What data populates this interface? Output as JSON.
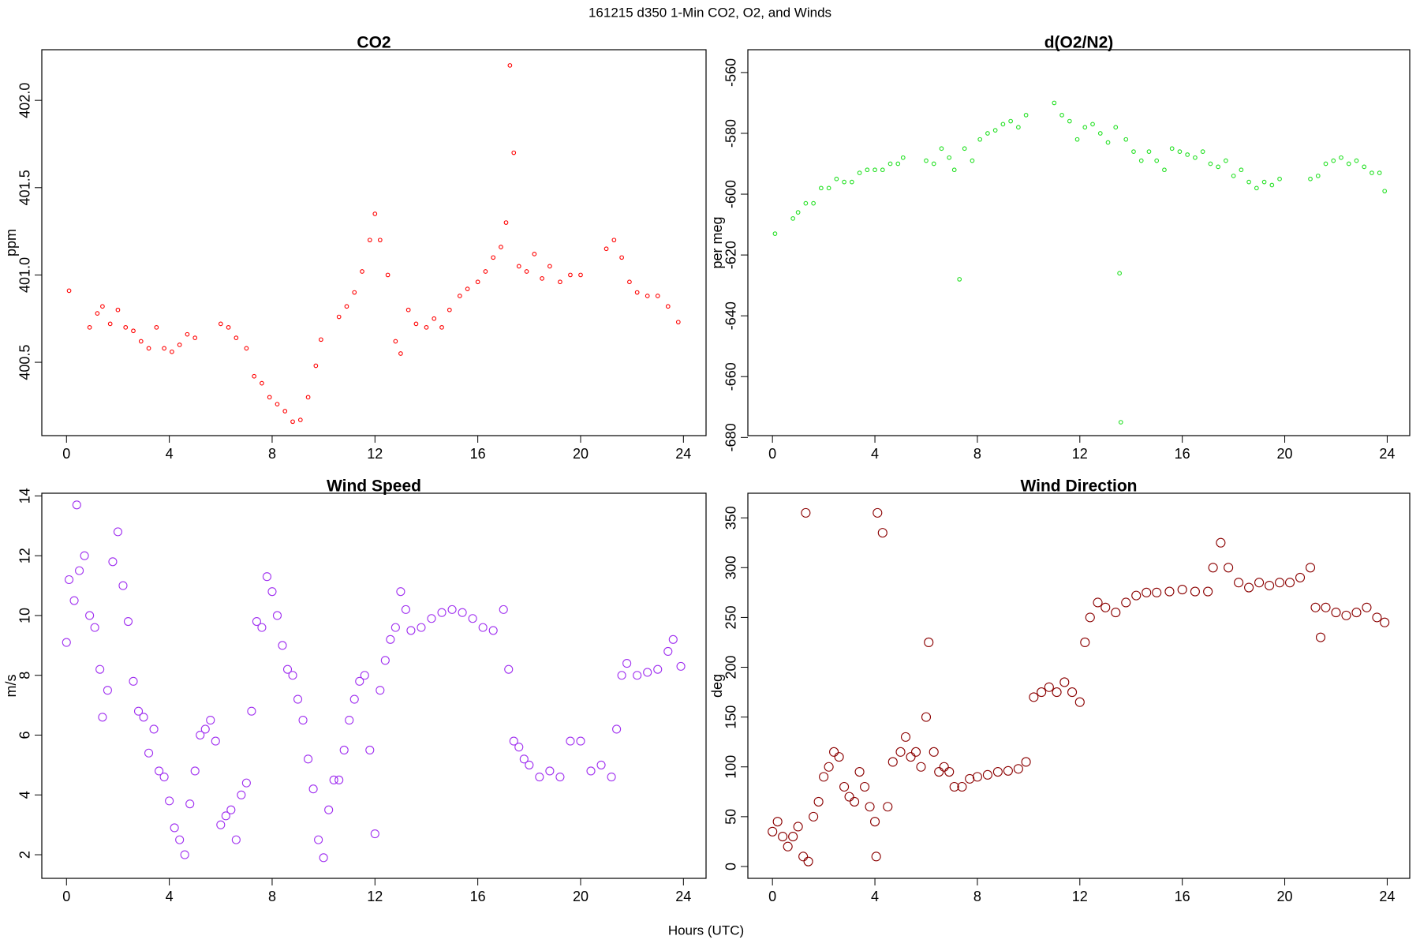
{
  "title": "161215   d350   1-Min CO2, O2, and Winds",
  "xlabel": "Hours (UTC)",
  "chart_data": [
    {
      "type": "scatter",
      "title": "CO2",
      "ylabel": "ppm",
      "color": "#ff0000",
      "x": [
        0.1,
        0.9,
        1.2,
        1.4,
        1.7,
        2.0,
        2.3,
        2.6,
        2.9,
        3.2,
        3.5,
        3.8,
        4.1,
        4.4,
        4.7,
        5.0,
        6.0,
        6.3,
        6.6,
        7.0,
        7.3,
        7.6,
        7.9,
        8.2,
        8.5,
        8.8,
        9.1,
        9.4,
        9.7,
        9.9,
        10.6,
        10.9,
        11.2,
        11.5,
        11.8,
        12.0,
        12.2,
        12.5,
        12.8,
        13.0,
        13.3,
        13.6,
        14.0,
        14.3,
        14.6,
        14.9,
        15.3,
        15.6,
        16.0,
        16.3,
        16.6,
        16.9,
        17.1,
        17.25,
        17.4,
        17.6,
        17.9,
        18.2,
        18.5,
        18.8,
        19.2,
        19.6,
        20.0,
        21.0,
        21.3,
        21.6,
        21.9,
        22.2,
        22.6,
        23.0,
        23.4,
        23.8
      ],
      "values": [
        400.91,
        400.7,
        400.78,
        400.82,
        400.72,
        400.8,
        400.7,
        400.68,
        400.62,
        400.58,
        400.7,
        400.58,
        400.56,
        400.6,
        400.66,
        400.64,
        400.72,
        400.7,
        400.64,
        400.58,
        400.42,
        400.38,
        400.3,
        400.26,
        400.22,
        400.16,
        400.17,
        400.3,
        400.48,
        400.63,
        400.76,
        400.82,
        400.9,
        401.02,
        401.2,
        401.35,
        401.2,
        401.0,
        400.62,
        400.55,
        400.8,
        400.72,
        400.7,
        400.75,
        400.7,
        400.8,
        400.88,
        400.92,
        400.96,
        401.02,
        401.1,
        401.16,
        401.3,
        402.2,
        401.7,
        401.05,
        401.02,
        401.12,
        400.98,
        401.05,
        400.96,
        401.0,
        401.0,
        401.15,
        401.2,
        401.1,
        400.96,
        400.9,
        400.88,
        400.88,
        400.82,
        400.73
      ],
      "xlim": [
        -0.96,
        24.88
      ],
      "xticks": [
        0,
        4,
        8,
        12,
        16,
        20,
        24
      ],
      "ylim": [
        400.08,
        402.29
      ],
      "yticks": [
        400.5,
        {
          "value": 401,
          "label": "401.0"
        },
        401.5,
        {
          "value": 402,
          "label": "402.0"
        }
      ]
    },
    {
      "type": "scatter",
      "title": "d(O2/N2)",
      "ylabel": "per meg",
      "color": "#22e022",
      "x": [
        0.1,
        0.8,
        1.0,
        1.3,
        1.6,
        1.9,
        2.2,
        2.5,
        2.8,
        3.1,
        3.4,
        3.7,
        4.0,
        4.3,
        4.6,
        4.9,
        5.1,
        6.0,
        6.3,
        6.6,
        6.9,
        7.1,
        7.3,
        7.5,
        7.8,
        8.1,
        8.4,
        8.7,
        9.0,
        9.3,
        9.6,
        9.9,
        11.0,
        11.3,
        11.6,
        11.9,
        12.2,
        12.5,
        12.8,
        13.1,
        13.4,
        13.55,
        13.6,
        13.8,
        14.1,
        14.4,
        14.7,
        15.0,
        15.3,
        15.6,
        15.9,
        16.2,
        16.5,
        16.8,
        17.1,
        17.4,
        17.7,
        18.0,
        18.3,
        18.6,
        18.9,
        19.2,
        19.5,
        19.8,
        21.0,
        21.3,
        21.6,
        21.9,
        22.2,
        22.5,
        22.8,
        23.1,
        23.4,
        23.7,
        23.9
      ],
      "values": [
        -613,
        -608,
        -606,
        -603,
        -603,
        -598,
        -598,
        -595,
        -596,
        -596,
        -593,
        -592,
        -592,
        -592,
        -590,
        -590,
        -588,
        -589,
        -590,
        -585,
        -588,
        -592,
        -628,
        -585,
        -589,
        -582,
        -580,
        -579,
        -577,
        -576,
        -578,
        -574,
        -570,
        -574,
        -576,
        -582,
        -578,
        -577,
        -580,
        -583,
        -578,
        -626,
        -675,
        -582,
        -586,
        -589,
        -586,
        -589,
        -592,
        -585,
        -586,
        -587,
        -588,
        -586,
        -590,
        -591,
        -589,
        -594,
        -592,
        -596,
        -598,
        -596,
        -597,
        -595,
        -595,
        -594,
        -590,
        -589,
        -588,
        -590,
        -589,
        -591,
        -593,
        -593,
        -599
      ],
      "xlim": [
        -0.96,
        24.88
      ],
      "xticks": [
        0,
        4,
        8,
        12,
        16,
        20,
        24
      ],
      "ylim": [
        -679.4,
        -552.5
      ],
      "yticks": [
        -680,
        -660,
        -640,
        -620,
        -600,
        -580,
        -560
      ]
    },
    {
      "type": "scatter",
      "title": "Wind Speed",
      "ylabel": "m/s",
      "color": "#a030f0",
      "x": [
        0.0,
        0.1,
        0.3,
        0.4,
        0.5,
        0.7,
        0.9,
        1.1,
        1.3,
        1.4,
        1.6,
        1.8,
        2.0,
        2.2,
        2.4,
        2.6,
        2.8,
        3.0,
        3.2,
        3.4,
        3.6,
        3.8,
        4.0,
        4.2,
        4.4,
        4.6,
        4.8,
        5.0,
        5.2,
        5.4,
        5.6,
        5.8,
        6.0,
        6.2,
        6.4,
        6.6,
        6.8,
        7.0,
        7.2,
        7.4,
        7.6,
        7.8,
        8.0,
        8.2,
        8.4,
        8.6,
        8.8,
        9.0,
        9.2,
        9.4,
        9.6,
        9.8,
        10.0,
        10.2,
        10.4,
        10.6,
        10.8,
        11.0,
        11.2,
        11.4,
        11.6,
        11.8,
        12.0,
        12.2,
        12.4,
        12.6,
        12.8,
        13.0,
        13.2,
        13.4,
        13.8,
        14.2,
        14.6,
        15.0,
        15.4,
        15.8,
        16.2,
        16.6,
        17.0,
        17.2,
        17.4,
        17.6,
        17.8,
        18.0,
        18.4,
        18.8,
        19.2,
        19.6,
        20.0,
        20.4,
        20.8,
        21.2,
        21.4,
        21.6,
        21.8,
        22.2,
        22.6,
        23.0,
        23.4,
        23.6,
        23.9
      ],
      "values": [
        9.1,
        11.2,
        10.5,
        13.7,
        11.5,
        12,
        10,
        9.6,
        8.2,
        6.6,
        7.5,
        11.8,
        12.8,
        11,
        9.8,
        7.8,
        6.8,
        6.6,
        5.4,
        6.2,
        4.8,
        4.6,
        3.8,
        2.9,
        2.5,
        2.0,
        3.7,
        4.8,
        6.0,
        6.2,
        6.5,
        5.8,
        3.0,
        3.3,
        3.5,
        2.5,
        4.0,
        4.4,
        6.8,
        9.8,
        9.6,
        11.3,
        10.8,
        10,
        9.0,
        8.2,
        8.0,
        7.2,
        6.5,
        5.2,
        4.2,
        2.5,
        1.9,
        3.5,
        4.5,
        4.5,
        5.5,
        6.5,
        7.2,
        7.8,
        8.0,
        5.5,
        2.7,
        7.5,
        8.5,
        9.2,
        9.6,
        10.8,
        10.2,
        9.5,
        9.6,
        9.9,
        10.1,
        10.2,
        10.1,
        9.9,
        9.6,
        9.5,
        10.2,
        8.2,
        5.8,
        5.6,
        5.2,
        5.0,
        4.6,
        4.8,
        4.6,
        5.8,
        5.8,
        4.8,
        5.0,
        4.6,
        6.2,
        8.0,
        8.4,
        8.0,
        8.1,
        8.2,
        8.8,
        9.2,
        8.3
      ],
      "xlim": [
        -0.96,
        24.88
      ],
      "xticks": [
        0,
        4,
        8,
        12,
        16,
        20,
        24
      ],
      "ylim": [
        1.21,
        14.09
      ],
      "yticks": [
        2,
        4,
        6,
        8,
        10,
        12,
        14
      ]
    },
    {
      "type": "scatter",
      "title": "Wind Direction",
      "ylabel": "deg",
      "color": "#8b0000",
      "x": [
        0.0,
        0.2,
        0.4,
        0.6,
        0.8,
        1.0,
        1.2,
        1.3,
        1.4,
        1.6,
        1.8,
        2.0,
        2.2,
        2.4,
        2.6,
        2.8,
        3.0,
        3.2,
        3.4,
        3.6,
        3.8,
        4.0,
        4.05,
        4.1,
        4.3,
        4.5,
        4.7,
        5.0,
        5.2,
        5.4,
        5.6,
        5.8,
        6.0,
        6.1,
        6.3,
        6.5,
        6.7,
        6.9,
        7.1,
        7.4,
        7.7,
        8.0,
        8.4,
        8.8,
        9.2,
        9.6,
        9.9,
        10.2,
        10.5,
        10.8,
        11.1,
        11.4,
        11.7,
        12.0,
        12.2,
        12.4,
        12.7,
        13.0,
        13.4,
        13.8,
        14.2,
        14.6,
        15.0,
        15.5,
        16.0,
        16.5,
        17.0,
        17.2,
        17.5,
        17.8,
        18.2,
        18.6,
        19.0,
        19.4,
        19.8,
        20.2,
        20.6,
        21.0,
        21.2,
        21.4,
        21.6,
        22.0,
        22.4,
        22.8,
        23.2,
        23.6,
        23.9
      ],
      "values": [
        35,
        45,
        30,
        20,
        30,
        40,
        10,
        355,
        5,
        50,
        65,
        90,
        100,
        115,
        110,
        80,
        70,
        65,
        95,
        80,
        60,
        45,
        10,
        355,
        335,
        60,
        105,
        115,
        130,
        110,
        115,
        100,
        150,
        225,
        115,
        95,
        100,
        95,
        80,
        80,
        88,
        90,
        92,
        95,
        96,
        98,
        105,
        170,
        175,
        180,
        175,
        185,
        175,
        165,
        225,
        250,
        265,
        260,
        255,
        265,
        272,
        275,
        275,
        276,
        278,
        276,
        276,
        300,
        325,
        300,
        285,
        280,
        285,
        282,
        285,
        285,
        290,
        300,
        260,
        230,
        260,
        255,
        252,
        255,
        260,
        250,
        245
      ],
      "xlim": [
        -0.96,
        24.88
      ],
      "xticks": [
        0,
        4,
        8,
        12,
        16,
        20,
        24
      ],
      "ylim": [
        -11.9,
        374.7
      ],
      "yticks": [
        0,
        50,
        100,
        150,
        200,
        250,
        300,
        350
      ]
    }
  ]
}
